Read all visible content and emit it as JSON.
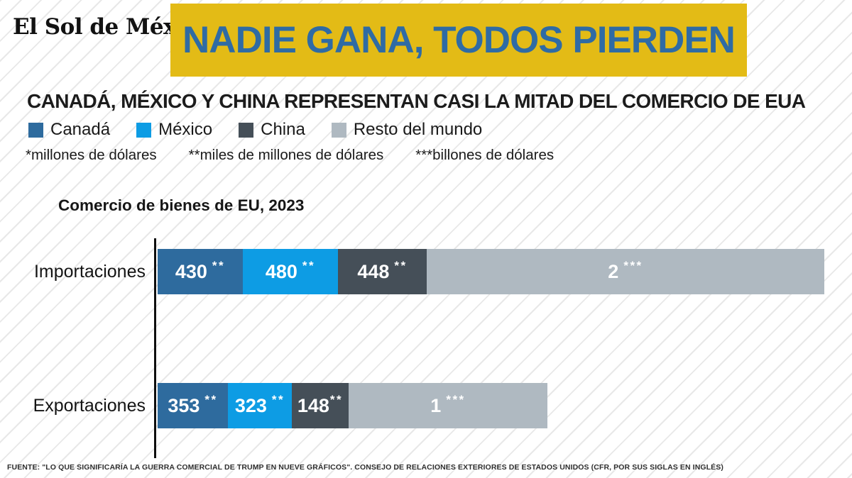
{
  "brand": {
    "logo_text": "El Sol de México"
  },
  "banner": {
    "title": "NADIE GANA, TODOS PIERDEN",
    "bg": "#e3bb16",
    "fg": "#2f6ba4"
  },
  "headline": "CANADÁ, MÉXICO Y CHINA REPRESENTAN CASI LA MITAD DEL COMERCIO DE EUA",
  "legend": [
    {
      "label": "Canadá",
      "key": "canada"
    },
    {
      "label": "México",
      "key": "mexico"
    },
    {
      "label": "China",
      "key": "china"
    },
    {
      "label": "Resto del mundo",
      "key": "resto"
    }
  ],
  "footnotes": [
    "*millones de dólares",
    "**miles de millones de dólares",
    "***billones de dólares"
  ],
  "colors": {
    "canada": "#2e6b9e",
    "mexico": "#0d9ce4",
    "china": "#454f58",
    "resto": "#afb9c1"
  },
  "chart_data": {
    "type": "bar",
    "orientation": "horizontal-stacked",
    "title": "Comercio de bienes de EU, 2023",
    "categories": [
      "Importaciones",
      "Exportaciones"
    ],
    "series": [
      {
        "name": "Canadá",
        "values_billions_usd": [
          430,
          353
        ]
      },
      {
        "name": "México",
        "values_billions_usd": [
          480,
          323
        ]
      },
      {
        "name": "China",
        "values_billions_usd": [
          448,
          148
        ]
      },
      {
        "name": "Resto del mundo",
        "values_billions_usd": [
          2000,
          1000
        ]
      }
    ],
    "rows": [
      {
        "label": "Importaciones",
        "segments": [
          {
            "num": "430",
            "stars": "**",
            "value": 430,
            "series": "canada"
          },
          {
            "num": "480",
            "stars": "**",
            "value": 480,
            "series": "mexico"
          },
          {
            "num": "448",
            "stars": "**",
            "value": 448,
            "series": "china"
          },
          {
            "num": "2",
            "stars": "***",
            "value": 2000,
            "series": "resto"
          }
        ]
      },
      {
        "label": "Exportaciones",
        "segments": [
          {
            "num": "353",
            "stars": "**",
            "value": 353,
            "series": "canada"
          },
          {
            "num": "323",
            "stars": "**",
            "value": 323,
            "series": "mexico"
          },
          {
            "num": "148",
            "stars": "**",
            "value": 148,
            "series": "china"
          },
          {
            "num": "1",
            "stars": "***",
            "value": 1000,
            "series": "resto"
          }
        ]
      }
    ],
    "legend_position": "top",
    "grid": false,
    "value_label_color": "#ffffff"
  },
  "source": "FUENTE: \"LO QUE SIGNIFICARÍA LA GUERRA COMERCIAL DE TRUMP EN NUEVE GRÁFICOS\". CONSEJO DE RELACIONES EXTERIORES DE ESTADOS UNIDOS (CFR, POR SUS SIGLAS EN INGLÉS)"
}
